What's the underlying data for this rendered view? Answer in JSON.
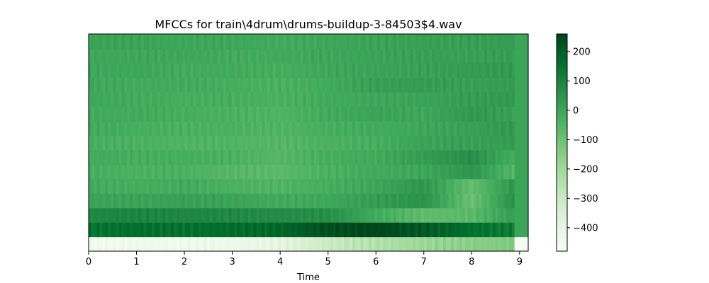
{
  "chart_data": {
    "type": "heatmap",
    "title": "MFCCs for train\\4drum\\drums-buildup-3-84503$4.wav",
    "xlabel": "Time",
    "ylabel": "",
    "xlim": [
      0,
      9.18
    ],
    "xticks": [
      "0",
      "1",
      "2",
      "3",
      "4",
      "5",
      "6",
      "7",
      "8",
      "9"
    ],
    "yticks": [],
    "n_coefficients": 15,
    "colormap": "Greens",
    "colorbar": {
      "vmin": -480,
      "vmax": 260,
      "ticks": [
        "200",
        "100",
        "0",
        "−100",
        "−200",
        "−300",
        "−400"
      ],
      "tick_values": [
        200,
        100,
        0,
        -100,
        -200,
        -300,
        -400
      ],
      "placement": "right"
    },
    "profile_times": [
      0,
      1,
      2,
      3,
      4,
      5,
      6,
      7,
      8,
      8.9
    ],
    "coefficient_profiles": [
      [
        -460,
        -455,
        -450,
        -440,
        -400,
        -310,
        -250,
        -200,
        -160,
        -140
      ],
      [
        140,
        155,
        150,
        160,
        175,
        235,
        250,
        210,
        150,
        120
      ],
      [
        80,
        90,
        85,
        80,
        70,
        60,
        -20,
        -80,
        -70,
        20
      ],
      [
        0,
        0,
        10,
        0,
        -20,
        -10,
        20,
        50,
        -100,
        60
      ],
      [
        -20,
        -30,
        -20,
        -40,
        -50,
        -30,
        -10,
        40,
        -90,
        40
      ],
      [
        -30,
        -40,
        -40,
        -60,
        -70,
        -40,
        -20,
        -10,
        40,
        -60
      ],
      [
        -20,
        -30,
        -30,
        -40,
        -60,
        -30,
        -20,
        20,
        60,
        -30
      ],
      [
        -30,
        -40,
        -50,
        -50,
        -60,
        -40,
        -30,
        0,
        10,
        20
      ],
      [
        -20,
        -30,
        -40,
        -40,
        -50,
        -30,
        -20,
        -10,
        10,
        30
      ],
      [
        -20,
        -20,
        -30,
        -40,
        -50,
        -20,
        0,
        -10,
        30,
        10
      ],
      [
        -10,
        -20,
        -30,
        -30,
        -40,
        -20,
        -10,
        0,
        20,
        30
      ],
      [
        -10,
        -20,
        -20,
        -30,
        -40,
        -20,
        10,
        20,
        10,
        20
      ],
      [
        -10,
        -10,
        -20,
        -20,
        -30,
        -10,
        0,
        10,
        20,
        30
      ],
      [
        -10,
        -10,
        -10,
        -20,
        -20,
        -10,
        0,
        10,
        10,
        20
      ],
      [
        0,
        0,
        -10,
        -10,
        -20,
        -10,
        0,
        10,
        10,
        20
      ]
    ]
  }
}
